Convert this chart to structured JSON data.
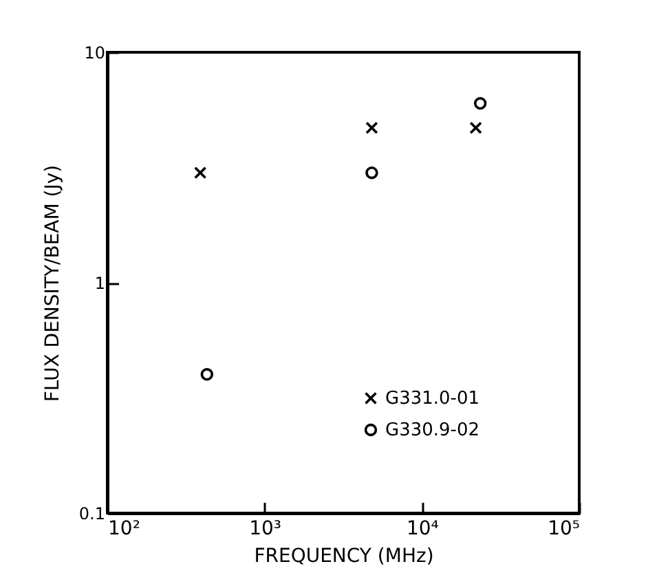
{
  "chart_data": {
    "type": "scatter",
    "xlabel": "FREQUENCY (MHz)",
    "ylabel": "FLUX DENSITY/BEAM (Jy)",
    "log": "xy",
    "xlim": [
      100,
      100000
    ],
    "ylim": [
      0.1,
      10
    ],
    "xticks": [
      {
        "value": 100,
        "label": "10²"
      },
      {
        "value": 1000,
        "label": "10³"
      },
      {
        "value": 10000,
        "label": "10⁴"
      },
      {
        "value": 100000,
        "label": "10⁵"
      }
    ],
    "yticks": [
      0.1,
      1,
      10
    ],
    "grid": false,
    "legend": "bottom right",
    "series": [
      {
        "name": "G331.0-01",
        "color": "#000000",
        "marker": "cross",
        "x": [
          390,
          4800,
          22000
        ],
        "values": [
          3.0,
          4.7,
          4.7
        ]
      },
      {
        "name": "G330.9-02",
        "color": "#000000",
        "marker": "circle",
        "x": [
          430,
          4800,
          23500
        ],
        "values": [
          0.4,
          3.0,
          6.0
        ]
      }
    ]
  }
}
